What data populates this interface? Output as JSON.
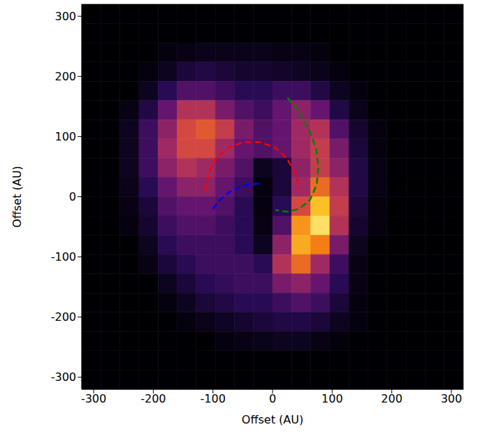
{
  "chart_data": {
    "type": "heatmap",
    "x_label": "Offset (AU)",
    "y_label": "Offset (AU)",
    "xlim": [
      -320,
      320
    ],
    "ylim": [
      -320,
      320
    ],
    "xticks": [
      -300,
      -200,
      -100,
      0,
      100,
      200,
      300
    ],
    "yticks": [
      -300,
      -200,
      -100,
      0,
      100,
      200,
      300
    ],
    "x": [
      -304,
      -272,
      -240,
      -208,
      -176,
      -144,
      -112,
      -80,
      -48,
      -16,
      16,
      48,
      80,
      112,
      144,
      176,
      208,
      240,
      272,
      304
    ],
    "y": [
      304,
      272,
      240,
      208,
      176,
      144,
      112,
      80,
      48,
      16,
      -16,
      -48,
      -80,
      -112,
      -144,
      -176,
      -208,
      -240,
      -272,
      -304
    ],
    "z": [
      [
        0,
        0,
        0,
        0,
        0,
        0,
        0,
        0,
        0,
        0,
        0,
        0,
        0,
        0,
        0,
        0,
        0,
        0,
        0,
        0
      ],
      [
        0,
        0,
        0,
        0,
        0,
        0,
        0,
        0,
        0,
        0,
        0,
        0,
        0,
        0,
        0,
        0,
        0,
        0,
        0,
        0
      ],
      [
        0,
        0,
        0,
        0,
        0.02,
        0.03,
        0.04,
        0.04,
        0.04,
        0.04,
        0.03,
        0.03,
        0.02,
        0,
        0,
        0,
        0,
        0,
        0,
        0
      ],
      [
        0,
        0,
        0,
        0.02,
        0.05,
        0.1,
        0.12,
        0.1,
        0.08,
        0.08,
        0.07,
        0.06,
        0.04,
        0.02,
        0,
        0,
        0,
        0,
        0,
        0
      ],
      [
        0,
        0,
        0,
        0.05,
        0.15,
        0.25,
        0.25,
        0.2,
        0.15,
        0.15,
        0.2,
        0.2,
        0.12,
        0.05,
        0.02,
        0,
        0,
        0,
        0,
        0
      ],
      [
        0,
        0,
        0.03,
        0.12,
        0.3,
        0.5,
        0.5,
        0.35,
        0.25,
        0.2,
        0.3,
        0.4,
        0.3,
        0.12,
        0.04,
        0,
        0,
        0,
        0,
        0
      ],
      [
        0,
        0,
        0.05,
        0.2,
        0.4,
        0.6,
        0.65,
        0.55,
        0.35,
        0.25,
        0.3,
        0.45,
        0.5,
        0.25,
        0.08,
        0.02,
        0,
        0,
        0,
        0
      ],
      [
        0,
        0,
        0.05,
        0.2,
        0.45,
        0.6,
        0.6,
        0.45,
        0.3,
        0.25,
        0.3,
        0.45,
        0.55,
        0.35,
        0.1,
        0.02,
        0,
        0,
        0,
        0
      ],
      [
        0,
        0,
        0.05,
        0.2,
        0.4,
        0.5,
        0.45,
        0.35,
        0.25,
        0.05,
        0.1,
        0.4,
        0.55,
        0.4,
        0.12,
        0.03,
        0,
        0,
        0,
        0
      ],
      [
        0,
        0,
        0.04,
        0.15,
        0.3,
        0.4,
        0.4,
        0.3,
        0.2,
        0.02,
        0.1,
        0.45,
        0.7,
        0.5,
        0.12,
        0.03,
        0,
        0,
        0,
        0
      ],
      [
        0,
        0,
        0.03,
        0.1,
        0.25,
        0.3,
        0.3,
        0.25,
        0.15,
        0.02,
        0.15,
        0.6,
        0.9,
        0.55,
        0.1,
        0.02,
        0,
        0,
        0,
        0
      ],
      [
        0,
        0,
        0.02,
        0.08,
        0.2,
        0.25,
        0.25,
        0.2,
        0.15,
        0.03,
        0.25,
        0.8,
        0.95,
        0.5,
        0.08,
        0.02,
        0,
        0,
        0,
        0
      ],
      [
        0,
        0,
        0,
        0.05,
        0.15,
        0.2,
        0.2,
        0.2,
        0.15,
        0.05,
        0.4,
        0.85,
        0.75,
        0.35,
        0.05,
        0,
        0,
        0,
        0,
        0
      ],
      [
        0,
        0,
        0,
        0.03,
        0.1,
        0.15,
        0.2,
        0.2,
        0.2,
        0.15,
        0.5,
        0.7,
        0.45,
        0.2,
        0.03,
        0,
        0,
        0,
        0,
        0
      ],
      [
        0,
        0,
        0,
        0,
        0.05,
        0.1,
        0.15,
        0.18,
        0.2,
        0.2,
        0.35,
        0.4,
        0.3,
        0.15,
        0.03,
        0,
        0,
        0,
        0,
        0
      ],
      [
        0,
        0,
        0,
        0,
        0.02,
        0.05,
        0.1,
        0.12,
        0.15,
        0.15,
        0.2,
        0.25,
        0.2,
        0.1,
        0.02,
        0,
        0,
        0,
        0,
        0
      ],
      [
        0,
        0,
        0,
        0,
        0,
        0.02,
        0.04,
        0.06,
        0.08,
        0.1,
        0.12,
        0.12,
        0.1,
        0.05,
        0.02,
        0,
        0,
        0,
        0,
        0
      ],
      [
        0,
        0,
        0,
        0,
        0,
        0,
        0,
        0.02,
        0.03,
        0.04,
        0.05,
        0.05,
        0.03,
        0.01,
        0,
        0,
        0,
        0,
        0,
        0
      ],
      [
        0,
        0,
        0,
        0,
        0,
        0,
        0,
        0,
        0,
        0,
        0,
        0,
        0,
        0,
        0,
        0,
        0,
        0,
        0,
        0
      ],
      [
        0,
        0,
        0,
        0,
        0,
        0,
        0,
        0,
        0,
        0,
        0,
        0,
        0,
        0,
        0,
        0,
        0,
        0,
        0,
        0
      ]
    ],
    "series": [
      {
        "color": "#ff0000",
        "line_style": "dashed",
        "x": [
          -112,
          -107,
          -94,
          -74,
          -48,
          -22,
          4,
          24,
          37,
          43,
          44
        ],
        "y": [
          10,
          41,
          64,
          82,
          91,
          91,
          82,
          64,
          41,
          22,
          12
        ]
      },
      {
        "color": "#0000ff",
        "line_style": "dashed",
        "x": [
          -100,
          -88,
          -72,
          -55,
          -38,
          -20
        ],
        "y": [
          -20,
          -5,
          8,
          16,
          21,
          22
        ]
      },
      {
        "color": "#008000",
        "line_style": "dashed",
        "x": [
          25,
          45,
          62,
          73,
          77,
          74,
          63,
          45,
          25,
          5
        ],
        "y": [
          165,
          140,
          110,
          80,
          50,
          20,
          -5,
          -20,
          -25,
          -22
        ]
      }
    ]
  }
}
